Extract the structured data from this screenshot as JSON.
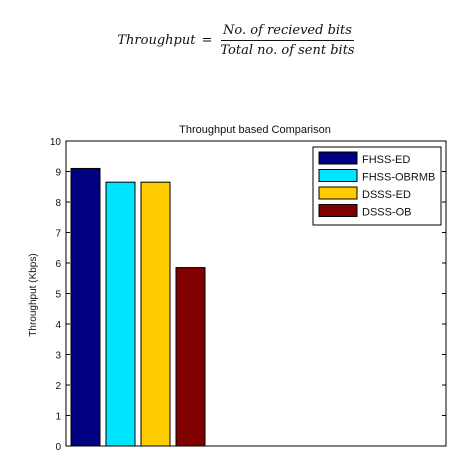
{
  "formula": {
    "lhs": "Throughput",
    "equals": "=",
    "numerator": "No. of recieved bits",
    "denominator": "Total no. of sent bits"
  },
  "chart_data": {
    "type": "bar",
    "title": "Throughput based Comparison",
    "xlabel": "",
    "ylabel": "Throughput (Kbps)",
    "ylim": [
      0,
      10
    ],
    "yticks": [
      "0",
      "1",
      "2",
      "3",
      "4",
      "5",
      "6",
      "7",
      "8",
      "9",
      "10"
    ],
    "grid": false,
    "legend_position": "top-right",
    "series": [
      {
        "name": "FHSS-ED",
        "value": 9.1,
        "color": "#000080"
      },
      {
        "name": "FHSS-OBRMB",
        "value": 8.65,
        "color": "#00e5ff"
      },
      {
        "name": "DSSS-ED",
        "value": 8.65,
        "color": "#ffcc00"
      },
      {
        "name": "DSSS-OB",
        "value": 5.85,
        "color": "#800000"
      }
    ]
  }
}
